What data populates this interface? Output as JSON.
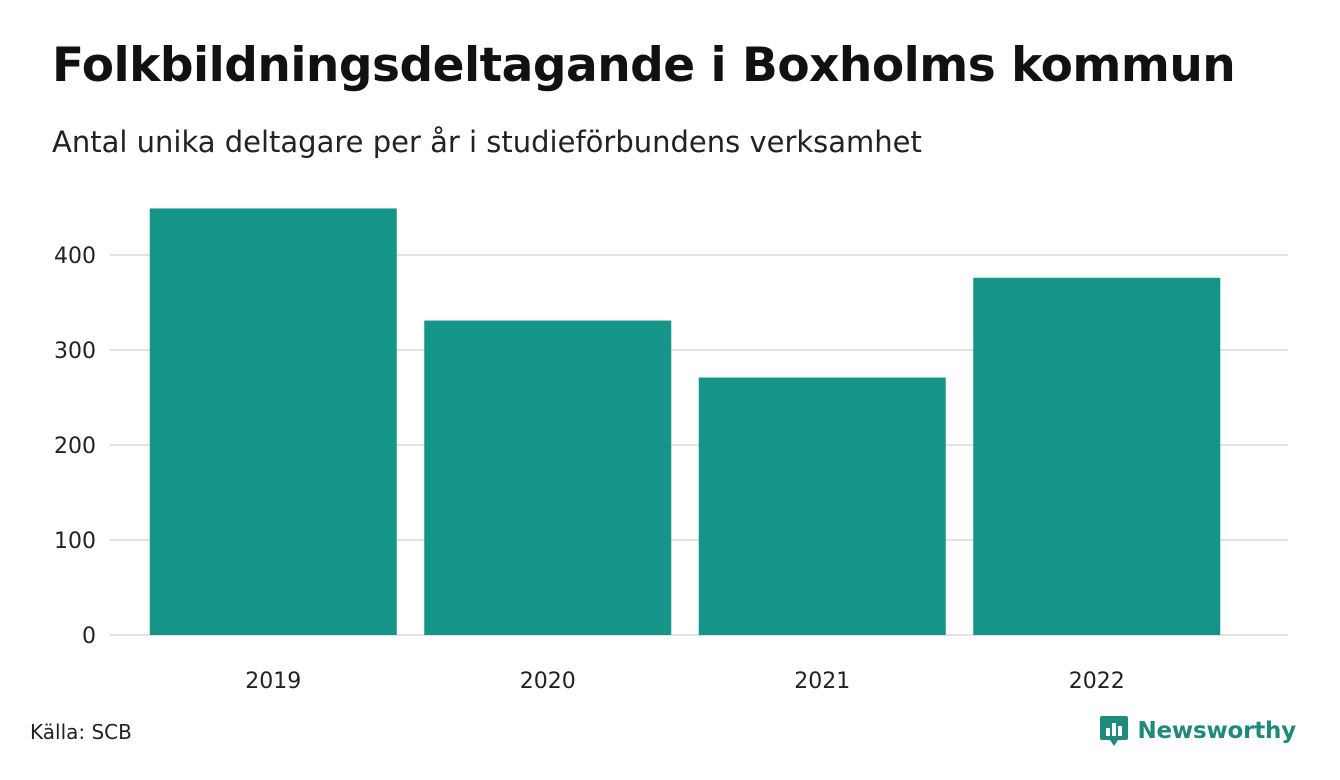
{
  "header": {
    "title": "Folkbildningsdeltagande i Boxholms kommun",
    "subtitle": "Antal unika deltagare per år i studieförbundens verksamhet"
  },
  "footer": {
    "source": "Källa: SCB",
    "brand": "Newsworthy",
    "brand_icon": "newsworthy-logo-icon"
  },
  "colors": {
    "bar": "#159588",
    "grid": "#e2e2e2",
    "brand": "#1f8a7c"
  },
  "chart_data": {
    "type": "bar",
    "categories": [
      "2019",
      "2020",
      "2021",
      "2022"
    ],
    "values": [
      449,
      331,
      271,
      376
    ],
    "title": "Folkbildningsdeltagande i Boxholms kommun",
    "subtitle": "Antal unika deltagare per år i studieförbundens verksamhet",
    "xlabel": "",
    "ylabel": "",
    "ylim": [
      0,
      470
    ],
    "yticks": [
      0,
      100,
      200,
      300,
      400
    ],
    "grid": true,
    "legend": "none"
  }
}
